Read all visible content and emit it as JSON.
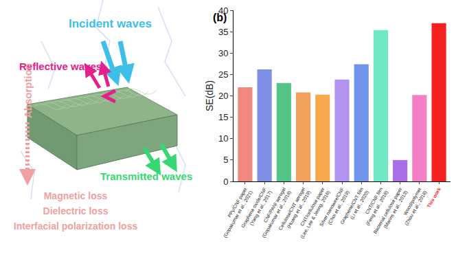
{
  "chart_data": {
    "type": "bar",
    "title": "(b)",
    "y_label": "SE(dB)",
    "categories": [
      "PPy/CNF paper\n(Gopakumar et al., 2021)",
      "Graphene oxide/CNF\n(Yang et al., 2017)",
      "CNF/PANI aerogel\n(Gopakumar et al., 2018)",
      "Cellulose/CNT aerogel\n(Huang et al., 2019)",
      "CNT/cellulose paper\n(Lee, Lee & Jeong, 2016)",
      "Silver nanowire/CNF\n(Choi et al., 2019)",
      "Graphene/CNT film\n(Li et al., 2020)",
      "CNT/CNF film\n(Feng et al., 2018)",
      "Bacterial cellulose paper\n(Marins et al., 2013)",
      "Wood/polymer\n(Zhou et al., 2018)",
      "This work"
    ],
    "values": [
      22,
      26.2,
      23,
      20.8,
      20.3,
      23.8,
      27.4,
      35.4,
      5,
      20.2,
      37
    ],
    "colors": [
      "#f08a80",
      "#7f8fe6",
      "#55c587",
      "#f0a25c",
      "#f7a84a",
      "#b294f0",
      "#6f95ea",
      "#6ee8c4",
      "#a96de8",
      "#f47fc7",
      "#f52020"
    ],
    "ylim": [
      0,
      40
    ],
    "yticks": [
      0,
      5,
      10,
      15,
      20,
      25,
      30,
      35,
      40
    ],
    "grid": false
  },
  "diagram": {
    "incident": "Incident waves",
    "reflective": "Reflective waves",
    "transmitted": "Transmitted waves",
    "absorption": "Absorption",
    "losses": [
      "Magnetic loss",
      "Dielectric loss",
      "Interfacial polarization loss"
    ]
  }
}
